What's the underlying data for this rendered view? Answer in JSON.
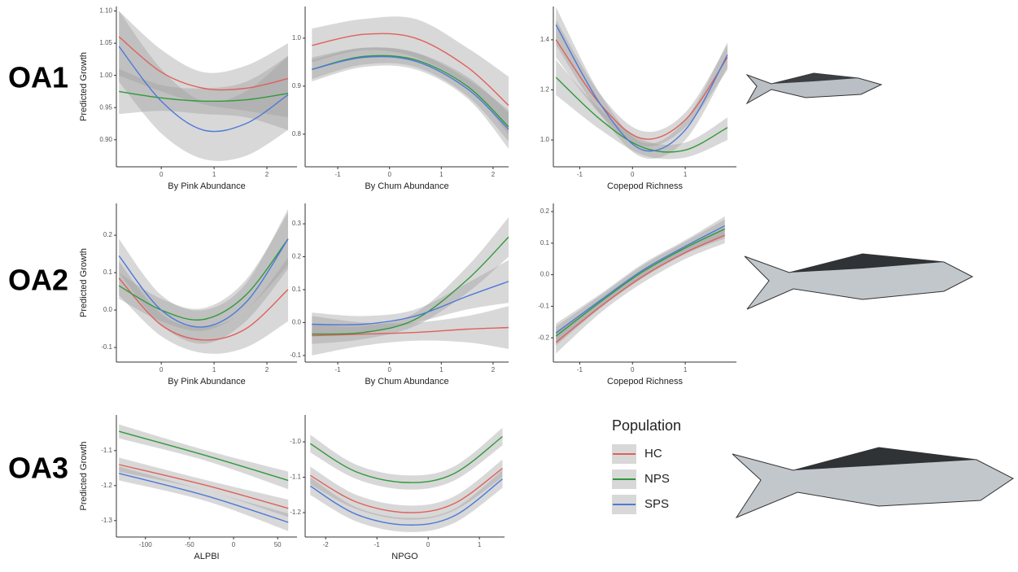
{
  "row_labels": [
    "OA1",
    "OA2",
    "OA3"
  ],
  "legend_title": "Population",
  "band_color": "#9e9e9e",
  "chart_data": [
    {
      "type": "line",
      "ylabel": "Predicted Growth",
      "xlabel": "By Pink Abundance",
      "x": [
        -0.8,
        0,
        0.8,
        1.6,
        2.4
      ],
      "xlim": [
        -0.85,
        2.57
      ],
      "xticks": [
        0,
        1,
        2
      ],
      "ylim": [
        0.858,
        1.107
      ],
      "yticks": [
        {
          "value": 0.9,
          "label": "0.90"
        },
        0.95,
        {
          "value": 1.0,
          "label": "1.00"
        },
        1.05,
        {
          "value": 1.1,
          "label": "1.10"
        }
      ],
      "series": [
        {
          "name": "HC",
          "color": "#e0605c",
          "values": [
            1.06,
            1.005,
            0.98,
            0.98,
            0.995
          ],
          "lower": [
            1.0,
            0.975,
            0.955,
            0.945,
            0.935
          ],
          "upper": [
            1.1,
            1.04,
            1.005,
            1.015,
            1.05
          ]
        },
        {
          "name": "NPS",
          "color": "#2e9a3a",
          "values": [
            0.975,
            0.965,
            0.96,
            0.962,
            0.972
          ],
          "lower": [
            0.94,
            0.945,
            0.94,
            0.935,
            0.915
          ],
          "upper": [
            1.01,
            0.985,
            0.98,
            0.99,
            1.03
          ]
        },
        {
          "name": "SPS",
          "color": "#4d79d8",
          "values": [
            1.045,
            0.96,
            0.915,
            0.925,
            0.97
          ],
          "lower": [
            0.99,
            0.91,
            0.87,
            0.875,
            0.915
          ],
          "upper": [
            1.1,
            1.01,
            0.96,
            0.975,
            1.03
          ]
        }
      ]
    },
    {
      "type": "line",
      "xlabel": "By Chum Abundance",
      "x": [
        -1.5,
        -0.5,
        0.5,
        1.5,
        2.3
      ],
      "xlim": [
        -1.63,
        2.3
      ],
      "xticks": [
        -1,
        0,
        1,
        2
      ],
      "ylim": [
        0.732,
        1.066
      ],
      "yticks": [
        0.8,
        0.9,
        {
          "value": 1.0,
          "label": "1.0"
        }
      ],
      "series": [
        {
          "name": "HC",
          "color": "#e0605c",
          "values": [
            0.985,
            1.008,
            1.0,
            0.94,
            0.86
          ],
          "lower": [
            0.95,
            0.975,
            0.96,
            0.9,
            0.8
          ],
          "upper": [
            1.02,
            1.04,
            1.04,
            0.98,
            0.92
          ]
        },
        {
          "name": "NPS",
          "color": "#2e9a3a",
          "values": [
            0.935,
            0.962,
            0.955,
            0.9,
            0.815
          ],
          "lower": [
            0.915,
            0.945,
            0.94,
            0.88,
            0.785
          ],
          "upper": [
            0.955,
            0.98,
            0.97,
            0.92,
            0.845
          ]
        },
        {
          "name": "SPS",
          "color": "#4d79d8",
          "values": [
            0.935,
            0.96,
            0.952,
            0.895,
            0.81
          ],
          "lower": [
            0.91,
            0.94,
            0.935,
            0.875,
            0.77
          ],
          "upper": [
            0.96,
            0.98,
            0.97,
            0.915,
            0.85
          ]
        }
      ]
    },
    {
      "type": "line",
      "xlabel": "Copepod Richness",
      "x": [
        -1.45,
        -0.6,
        0.2,
        1.0,
        1.8
      ],
      "xlim": [
        -1.5,
        1.97
      ],
      "xticks": [
        -1,
        0,
        1
      ],
      "ylim": [
        0.893,
        1.533
      ],
      "yticks": [
        {
          "value": 1.0,
          "label": "1.0"
        },
        1.2,
        1.4
      ],
      "series": [
        {
          "name": "HC",
          "color": "#e0605c",
          "values": [
            1.4,
            1.14,
            1.005,
            1.08,
            1.33
          ],
          "lower": [
            1.33,
            1.1,
            0.975,
            1.05,
            1.28
          ],
          "upper": [
            1.48,
            1.18,
            1.035,
            1.11,
            1.38
          ]
        },
        {
          "name": "NPS",
          "color": "#2e9a3a",
          "values": [
            1.25,
            1.08,
            0.97,
            0.96,
            1.05
          ],
          "lower": [
            1.18,
            1.04,
            0.94,
            0.93,
            1.0
          ],
          "upper": [
            1.32,
            1.12,
            1.0,
            0.99,
            1.09
          ]
        },
        {
          "name": "SPS",
          "color": "#4d79d8",
          "values": [
            1.46,
            1.14,
            0.96,
            1.04,
            1.34
          ],
          "lower": [
            1.38,
            1.1,
            0.93,
            1.0,
            1.29
          ],
          "upper": [
            1.53,
            1.18,
            0.99,
            1.08,
            1.39
          ]
        }
      ]
    },
    {
      "type": "line",
      "ylabel": "Predicted Growth",
      "xlabel": "By Pink Abundance",
      "x": [
        -0.8,
        0,
        0.8,
        1.6,
        2.4
      ],
      "xlim": [
        -0.85,
        2.57
      ],
      "xticks": [
        0,
        1,
        2
      ],
      "ylim": [
        -0.139,
        0.285
      ],
      "yticks": [
        -0.1,
        {
          "value": 0,
          "label": "0.0"
        },
        0.1,
        0.2
      ],
      "series": [
        {
          "name": "HC",
          "color": "#e0605c",
          "values": [
            0.085,
            -0.04,
            -0.08,
            -0.05,
            0.055
          ],
          "lower": [
            0.04,
            -0.07,
            -0.115,
            -0.1,
            -0.03
          ],
          "upper": [
            0.13,
            -0.01,
            -0.045,
            0.0,
            0.14
          ]
        },
        {
          "name": "NPS",
          "color": "#2e9a3a",
          "values": [
            0.065,
            0.0,
            -0.025,
            0.04,
            0.19
          ],
          "lower": [
            0.03,
            -0.03,
            -0.055,
            0.0,
            0.12
          ],
          "upper": [
            0.1,
            0.03,
            0.005,
            0.08,
            0.26
          ]
        },
        {
          "name": "SPS",
          "color": "#4d79d8",
          "values": [
            0.145,
            0.0,
            -0.045,
            0.02,
            0.19
          ],
          "lower": [
            0.1,
            -0.04,
            -0.09,
            -0.03,
            0.11
          ],
          "upper": [
            0.19,
            0.04,
            0.0,
            0.07,
            0.27
          ]
        }
      ]
    },
    {
      "type": "line",
      "xlabel": "By Chum Abundance",
      "x": [
        -1.5,
        -0.5,
        0.5,
        1.5,
        2.3
      ],
      "xlim": [
        -1.63,
        2.3
      ],
      "xticks": [
        -1,
        0,
        1,
        2
      ],
      "ylim": [
        -0.12,
        0.362
      ],
      "yticks": [
        -0.1,
        {
          "value": 0,
          "label": "0.0"
        },
        0.1,
        0.2,
        0.3
      ],
      "series": [
        {
          "name": "HC",
          "color": "#e0605c",
          "values": [
            -0.04,
            -0.035,
            -0.03,
            -0.02,
            -0.015
          ],
          "lower": [
            -0.1,
            -0.07,
            -0.055,
            -0.06,
            -0.08
          ],
          "upper": [
            0.02,
            0.0,
            0.0,
            0.02,
            0.05
          ]
        },
        {
          "name": "NPS",
          "color": "#2e9a3a",
          "values": [
            -0.035,
            -0.03,
            0.01,
            0.13,
            0.26
          ],
          "lower": [
            -0.065,
            -0.05,
            -0.01,
            0.09,
            0.2
          ],
          "upper": [
            -0.005,
            -0.01,
            0.03,
            0.17,
            0.32
          ]
        },
        {
          "name": "SPS",
          "color": "#4d79d8",
          "values": [
            -0.005,
            -0.005,
            0.02,
            0.08,
            0.125
          ],
          "lower": [
            -0.04,
            -0.03,
            0.0,
            0.04,
            0.06
          ],
          "upper": [
            0.03,
            0.02,
            0.04,
            0.12,
            0.19
          ]
        }
      ]
    },
    {
      "type": "line",
      "xlabel": "Copepod Richness",
      "x": [
        -1.45,
        -0.6,
        0.2,
        1.0,
        1.75
      ],
      "xlim": [
        -1.5,
        1.97
      ],
      "xticks": [
        -1,
        0,
        1
      ],
      "ylim": [
        -0.277,
        0.226
      ],
      "yticks": [
        -0.2,
        -0.1,
        {
          "value": 0,
          "label": "0.0"
        },
        0.1,
        0.2
      ],
      "series": [
        {
          "name": "HC",
          "color": "#e0605c",
          "values": [
            -0.215,
            -0.1,
            -0.005,
            0.07,
            0.125
          ],
          "lower": [
            -0.25,
            -0.12,
            -0.025,
            0.05,
            0.1
          ],
          "upper": [
            -0.18,
            -0.08,
            0.015,
            0.09,
            0.15
          ]
        },
        {
          "name": "NPS",
          "color": "#2e9a3a",
          "values": [
            -0.195,
            -0.085,
            0.01,
            0.085,
            0.145
          ],
          "lower": [
            -0.225,
            -0.105,
            -0.01,
            0.065,
            0.115
          ],
          "upper": [
            -0.165,
            -0.065,
            0.03,
            0.105,
            0.175
          ]
        },
        {
          "name": "SPS",
          "color": "#4d79d8",
          "values": [
            -0.185,
            -0.08,
            0.015,
            0.09,
            0.155
          ],
          "lower": [
            -0.215,
            -0.1,
            -0.005,
            0.07,
            0.125
          ],
          "upper": [
            -0.155,
            -0.06,
            0.035,
            0.11,
            0.185
          ]
        }
      ]
    },
    {
      "type": "line",
      "ylabel": "Predicted Growth",
      "xlabel": "ALPBI",
      "x": [
        -130,
        -30,
        62
      ],
      "xlim": [
        -133,
        72
      ],
      "xticks": [
        -100,
        -50,
        0,
        50
      ],
      "ylim": [
        -1.347,
        -0.998
      ],
      "yticks": [
        -1.3,
        -1.2,
        -1.1
      ],
      "series": [
        {
          "name": "HC",
          "color": "#e0605c",
          "values": [
            -1.14,
            -1.2,
            -1.265
          ],
          "lower": [
            -1.16,
            -1.215,
            -1.29
          ],
          "upper": [
            -1.12,
            -1.185,
            -1.24
          ]
        },
        {
          "name": "NPS",
          "color": "#2e9a3a",
          "values": [
            -1.045,
            -1.115,
            -1.185
          ],
          "lower": [
            -1.065,
            -1.13,
            -1.21
          ],
          "upper": [
            -1.025,
            -1.1,
            -1.16
          ]
        },
        {
          "name": "SPS",
          "color": "#4d79d8",
          "values": [
            -1.165,
            -1.23,
            -1.305
          ],
          "lower": [
            -1.185,
            -1.245,
            -1.33
          ],
          "upper": [
            -1.145,
            -1.215,
            -1.28
          ]
        }
      ]
    },
    {
      "type": "line",
      "xlabel": "NPGO",
      "x": [
        -2.3,
        -1.4,
        -0.4,
        0.5,
        1.45
      ],
      "xlim": [
        -2.4,
        1.49
      ],
      "xticks": [
        -2,
        -1,
        0,
        1
      ],
      "ylim": [
        -1.269,
        -0.924
      ],
      "yticks": [
        -1.2,
        -1.1,
        {
          "value": -1.0,
          "label": "-1.0"
        }
      ],
      "series": [
        {
          "name": "HC",
          "color": "#e0605c",
          "values": [
            -1.095,
            -1.17,
            -1.2,
            -1.175,
            -1.075
          ],
          "lower": [
            -1.12,
            -1.19,
            -1.22,
            -1.195,
            -1.1
          ],
          "upper": [
            -1.07,
            -1.15,
            -1.18,
            -1.155,
            -1.05
          ]
        },
        {
          "name": "NPS",
          "color": "#2e9a3a",
          "values": [
            -1.005,
            -1.085,
            -1.115,
            -1.09,
            -0.985
          ],
          "lower": [
            -1.03,
            -1.105,
            -1.135,
            -1.11,
            -1.01
          ],
          "upper": [
            -0.98,
            -1.065,
            -1.095,
            -1.07,
            -0.96
          ]
        },
        {
          "name": "SPS",
          "color": "#4d79d8",
          "values": [
            -1.125,
            -1.205,
            -1.235,
            -1.21,
            -1.105
          ],
          "lower": [
            -1.15,
            -1.225,
            -1.255,
            -1.23,
            -1.13
          ],
          "upper": [
            -1.1,
            -1.185,
            -1.215,
            -1.19,
            -1.08
          ]
        }
      ]
    }
  ]
}
